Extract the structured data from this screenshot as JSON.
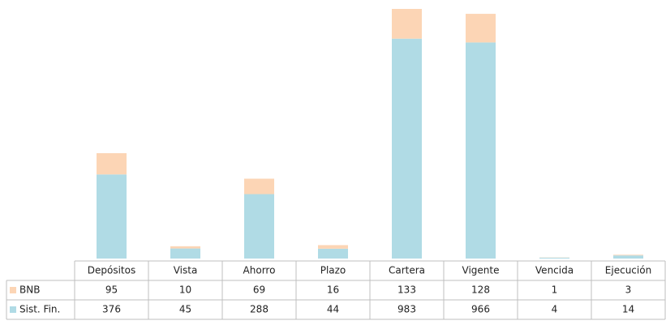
{
  "chart_data": {
    "type": "stacked_bar_table",
    "categories": [
      "Depósitos",
      "Vista",
      "Ahorro",
      "Plazo",
      "Cartera",
      "Vigente",
      "Vencida",
      "Ejecución"
    ],
    "series": [
      {
        "name": "BNB",
        "color": "#fcd5b5",
        "values": [
          95,
          10,
          69,
          16,
          133,
          128,
          1,
          3
        ]
      },
      {
        "name": "Sist. Fin.",
        "color": "#b0dbe5",
        "values": [
          376,
          45,
          288,
          44,
          983,
          966,
          4,
          14
        ]
      }
    ]
  }
}
